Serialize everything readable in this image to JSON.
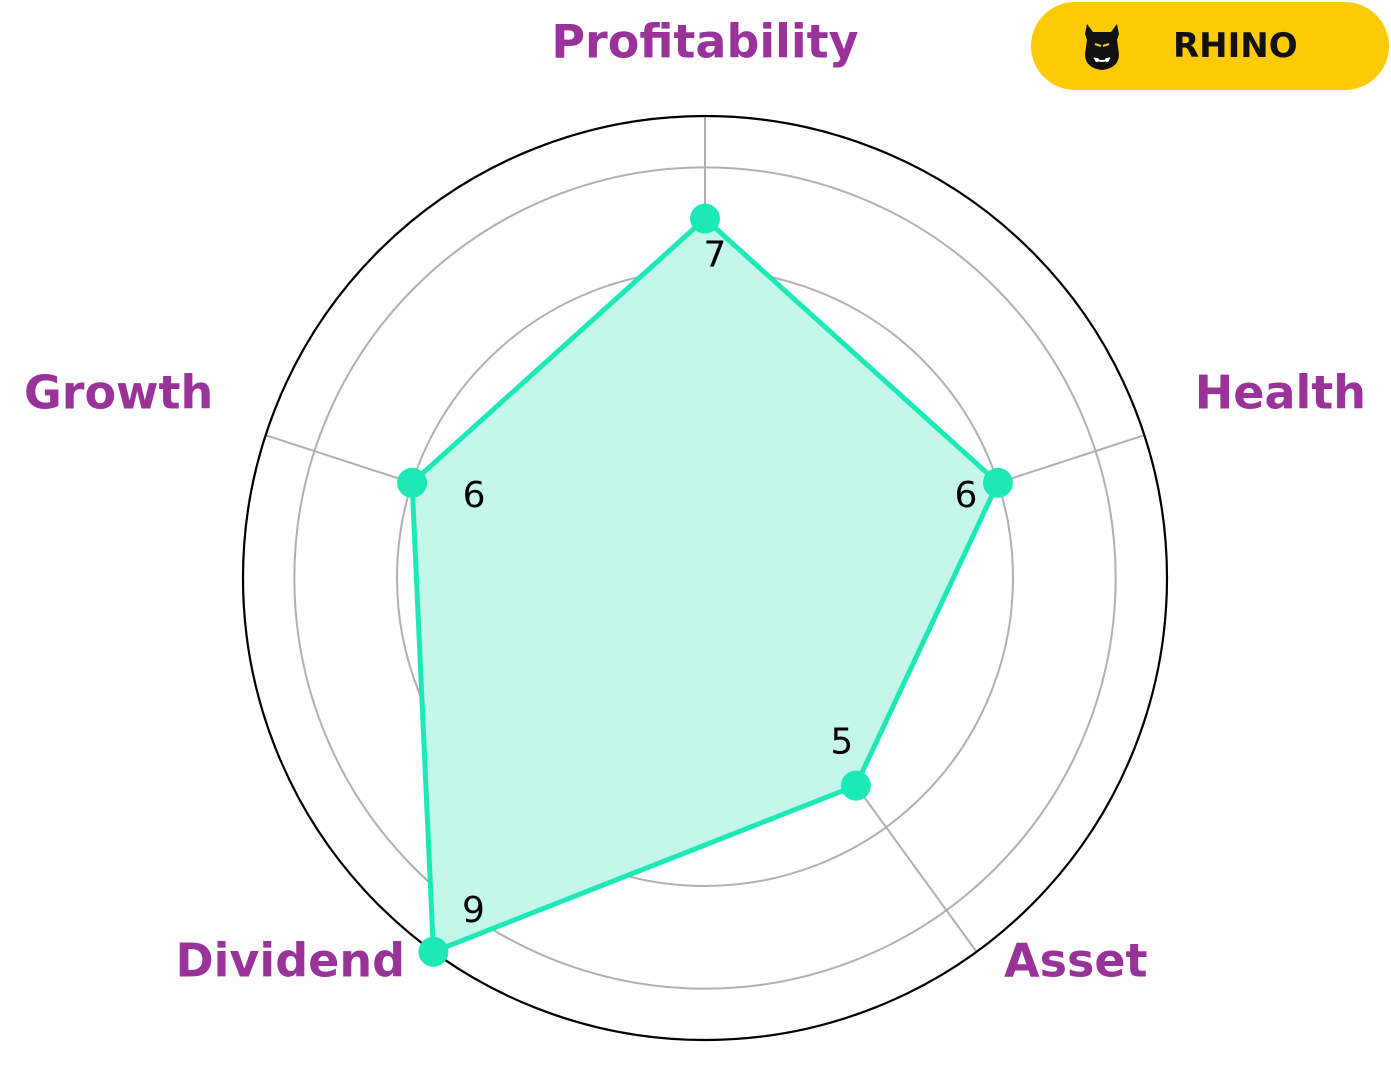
{
  "brand": {
    "name": "RHINO",
    "icon": "rhino-icon",
    "badge_color": "#fccb06"
  },
  "colors": {
    "series": "#1de9b6",
    "fill": "#c4f7ea",
    "axis_label": "#993399",
    "grid": "#b0b0b0",
    "outer_ring": "#000000"
  },
  "chart_data": {
    "type": "radar",
    "axes": [
      "Profitability",
      "Health",
      "Asset",
      "Dividend",
      "Growth"
    ],
    "values": [
      7,
      6,
      5,
      9,
      6
    ],
    "value_labels": [
      "7",
      "6",
      "5",
      "9",
      "6"
    ],
    "range": [
      0,
      9
    ],
    "grid_rings": [
      2,
      4,
      6,
      8
    ],
    "grid": true,
    "filled": true
  }
}
